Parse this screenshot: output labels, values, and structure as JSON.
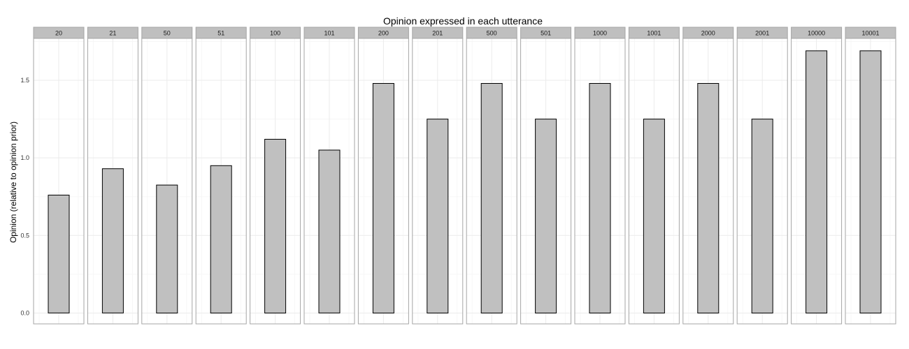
{
  "chart_data": {
    "type": "bar",
    "title": "Opinion expressed in each utterance",
    "ylabel": "Opinion (relative to opinion prior)",
    "xlabel": "",
    "ylim": [
      -0.07,
      1.77
    ],
    "yticks": [
      0.0,
      0.5,
      1.0,
      1.5
    ],
    "ytick_labels": [
      "0.0",
      "0.5",
      "1.0",
      "1.5"
    ],
    "grid": true,
    "facets": [
      "20",
      "21",
      "50",
      "51",
      "100",
      "101",
      "200",
      "201",
      "500",
      "501",
      "1000",
      "1001",
      "2000",
      "2001",
      "10000",
      "10001"
    ],
    "values": [
      0.76,
      0.93,
      0.825,
      0.95,
      1.12,
      1.05,
      1.48,
      1.25,
      1.48,
      1.25,
      1.48,
      1.25,
      1.48,
      1.25,
      1.69,
      1.69
    ],
    "colors": {
      "bar_fill": "#c0c0c0",
      "bar_stroke": "#000000",
      "strip_fill": "#bfbfbf",
      "panel_border": "#a6a6a6",
      "grid_major": "#ebebeb",
      "grid_minor": "#f5f5f5"
    }
  }
}
